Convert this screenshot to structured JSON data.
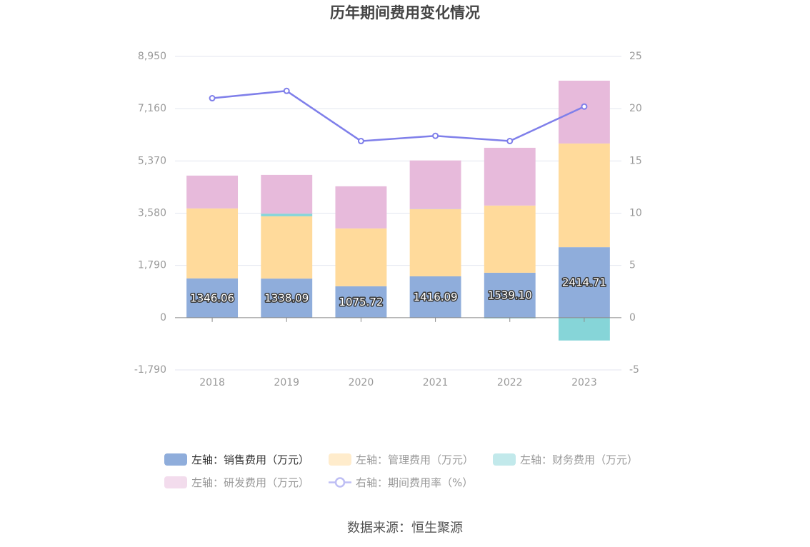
{
  "chart_data": {
    "type": "bar",
    "title": "历年期间费用变化情况",
    "categories": [
      "2018",
      "2019",
      "2020",
      "2021",
      "2022",
      "2023"
    ],
    "left_axis": {
      "ylim": [
        -1790,
        8950
      ],
      "ticks": [
        8950,
        7160,
        5370,
        3580,
        1790,
        0,
        -1790
      ],
      "tick_labels": [
        "8,950",
        "7,160",
        "5,370",
        "3,580",
        "1,790",
        "0",
        "-1,790"
      ]
    },
    "right_axis": {
      "ylim": [
        -5,
        25
      ],
      "ticks": [
        25,
        20,
        15,
        10,
        5,
        0,
        -5
      ],
      "tick_labels": [
        "25",
        "20",
        "15",
        "10",
        "5",
        "0",
        "-5"
      ]
    },
    "series": [
      {
        "name": "左轴：销售费用（万元）",
        "type": "bar",
        "axis": "left",
        "stacked": true,
        "data_labels": true,
        "color": "#8FADDB",
        "values": [
          1346.06,
          1338.09,
          1075.72,
          1416.09,
          1539.1,
          2414.71
        ]
      },
      {
        "name": "左轴：管理费用（万元）",
        "type": "bar",
        "axis": "left",
        "stacked": true,
        "color": "#FFDA9B",
        "values": [
          2396,
          2135,
          1981,
          2301,
          2301,
          3552
        ]
      },
      {
        "name": "左轴：财务费用（万元）",
        "type": "bar",
        "axis": "left",
        "stacked": true,
        "color": "#86D5D8",
        "values": [
          -8,
          90,
          -10,
          6,
          -25,
          -783
        ]
      },
      {
        "name": "左轴：研发费用（万元）",
        "type": "bar",
        "axis": "left",
        "stacked": true,
        "color": "#E7BADB",
        "values": [
          1125,
          1328,
          1443,
          1663,
          1980,
          2152
        ]
      },
      {
        "name": "右轴：期间费用率（%）",
        "type": "line",
        "axis": "right",
        "color": "#7F7FEA",
        "values": [
          21.0,
          21.7,
          16.9,
          17.4,
          16.9,
          20.2
        ]
      }
    ],
    "grid": true,
    "legend_position": "bottom"
  },
  "source": "数据来源：恒生聚源"
}
